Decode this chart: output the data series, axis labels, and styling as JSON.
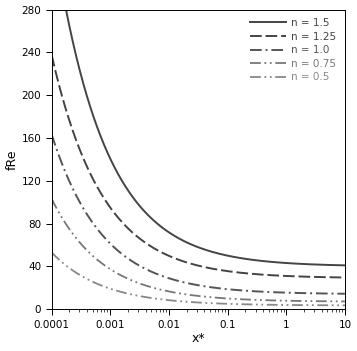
{
  "title": "",
  "xlabel": "x*",
  "ylabel": "fRe",
  "xlim": [
    0.0001,
    10
  ],
  "ylim": [
    0,
    280
  ],
  "yticks": [
    0,
    40,
    80,
    120,
    160,
    200,
    240,
    280
  ],
  "background_color": "#ffffff",
  "curves": [
    {
      "n": 1.5,
      "fRe_fd": 40.0,
      "peak_x": 0.00022,
      "peak_y": 255,
      "label": "n = 1.5",
      "color": "#444444",
      "lw": 1.4,
      "ls": "solid"
    },
    {
      "n": 1.25,
      "fRe_fd": 29.0,
      "peak_x": 0.00022,
      "peak_y": 170,
      "label": "n = 1.25",
      "color": "#444444",
      "lw": 1.4,
      "ls": "dashed"
    },
    {
      "n": 1.0,
      "fRe_fd": 14.0,
      "peak_x": 0.00022,
      "peak_y": 115,
      "label": "n = 1.0",
      "color": "#555555",
      "lw": 1.4,
      "ls": "dashdot1"
    },
    {
      "n": 0.75,
      "fRe_fd": 7.0,
      "peak_x": 0.00022,
      "peak_y": 72,
      "label": "n = 0.75",
      "color": "#777777",
      "lw": 1.3,
      "ls": "dashdot2"
    },
    {
      "n": 0.5,
      "fRe_fd": 3.5,
      "peak_x": 0.00022,
      "peak_y": 37,
      "label": "n = 0.5",
      "color": "#888888",
      "lw": 1.3,
      "ls": "dashdot3"
    }
  ]
}
